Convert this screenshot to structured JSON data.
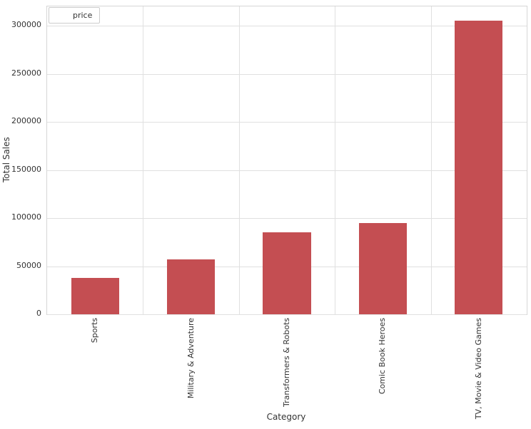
{
  "chart_data": {
    "type": "bar",
    "title": "",
    "xlabel": "Category",
    "ylabel": "Total Sales",
    "categories": [
      "Sports",
      "Military & Adventure",
      "Transformers & Robots",
      "Comic Book Heroes",
      "TV, Movie & Video Games"
    ],
    "series": [
      {
        "name": "price",
        "values": [
          37500,
          57000,
          85500,
          95000,
          305000
        ]
      }
    ],
    "ylim": [
      0,
      320000
    ],
    "yticks": [
      0,
      50000,
      100000,
      150000,
      200000,
      250000,
      300000
    ],
    "grid": true,
    "legend_position": "upper left",
    "bar_color": "#c44e52",
    "grid_color": "#e0e0e0"
  }
}
